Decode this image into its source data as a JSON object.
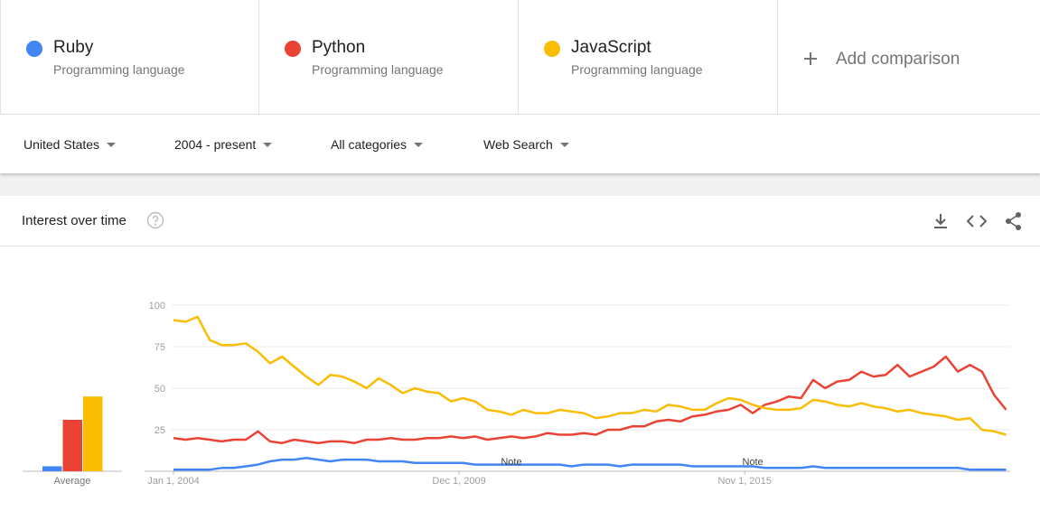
{
  "term_subtitles": [
    "Programming language",
    "Programming language",
    "Programming language"
  ],
  "add_comparison": "Add comparison",
  "filters": [
    "United States",
    "2004 - present",
    "All categories",
    "Web Search"
  ],
  "panel_title": "Interest over time",
  "chart_data": {
    "type": "line",
    "x": [
      "2004-01",
      "2004-04",
      "2004-07",
      "2004-10",
      "2005-01",
      "2005-04",
      "2005-07",
      "2005-10",
      "2006-01",
      "2006-04",
      "2006-07",
      "2006-10",
      "2007-01",
      "2007-04",
      "2007-07",
      "2007-10",
      "2008-01",
      "2008-04",
      "2008-07",
      "2008-10",
      "2009-01",
      "2009-04",
      "2009-07",
      "2009-10",
      "2010-01",
      "2010-04",
      "2010-07",
      "2010-10",
      "2011-01",
      "2011-04",
      "2011-07",
      "2011-10",
      "2012-01",
      "2012-04",
      "2012-07",
      "2012-10",
      "2013-01",
      "2013-04",
      "2013-07",
      "2013-10",
      "2014-01",
      "2014-04",
      "2014-07",
      "2014-10",
      "2015-01",
      "2015-04",
      "2015-07",
      "2015-10",
      "2016-01",
      "2016-04",
      "2016-07",
      "2016-10",
      "2017-01",
      "2017-04",
      "2017-07",
      "2017-10",
      "2018-01",
      "2018-04",
      "2018-07",
      "2018-10",
      "2019-01",
      "2019-04",
      "2019-07",
      "2019-10",
      "2020-01",
      "2020-04",
      "2020-07",
      "2020-10",
      "2021-01",
      "2021-04"
    ],
    "series": [
      {
        "name": "Ruby",
        "color": "#4285f4",
        "values": [
          1,
          1,
          1,
          1,
          2,
          2,
          3,
          4,
          6,
          7,
          7,
          8,
          7,
          6,
          7,
          7,
          7,
          6,
          6,
          6,
          5,
          5,
          5,
          5,
          5,
          4,
          4,
          4,
          4,
          4,
          4,
          4,
          4,
          3,
          4,
          4,
          4,
          3,
          4,
          4,
          4,
          4,
          4,
          3,
          3,
          3,
          3,
          3,
          3,
          2,
          2,
          2,
          2,
          3,
          2,
          2,
          2,
          2,
          2,
          2,
          2,
          2,
          2,
          2,
          2,
          2,
          1,
          1,
          1,
          1
        ]
      },
      {
        "name": "Python",
        "color": "#ea4335",
        "values": [
          20,
          19,
          20,
          19,
          18,
          19,
          19,
          24,
          18,
          17,
          19,
          18,
          17,
          18,
          18,
          17,
          19,
          19,
          20,
          19,
          19,
          20,
          20,
          21,
          20,
          21,
          19,
          20,
          21,
          20,
          21,
          23,
          22,
          22,
          23,
          22,
          25,
          25,
          27,
          27,
          30,
          31,
          30,
          33,
          34,
          36,
          37,
          40,
          35,
          40,
          42,
          45,
          44,
          55,
          50,
          54,
          55,
          60,
          57,
          58,
          64,
          57,
          60,
          63,
          69,
          60,
          64,
          60,
          46,
          37
        ]
      },
      {
        "name": "JavaScript",
        "color": "#fbbc04",
        "values": [
          91,
          90,
          93,
          79,
          76,
          76,
          77,
          72,
          65,
          69,
          63,
          57,
          52,
          58,
          57,
          54,
          50,
          56,
          52,
          47,
          50,
          48,
          47,
          42,
          44,
          42,
          37,
          36,
          34,
          37,
          35,
          35,
          37,
          36,
          35,
          32,
          33,
          35,
          35,
          37,
          36,
          40,
          39,
          37,
          37,
          41,
          44,
          43,
          40,
          38,
          37,
          37,
          38,
          43,
          42,
          40,
          39,
          41,
          39,
          38,
          36,
          37,
          35,
          34,
          33,
          31,
          32,
          25,
          24,
          22
        ]
      }
    ],
    "xlim": [
      "2004-01",
      "2021-05"
    ],
    "ylim": [
      0,
      100
    ],
    "yticks": [
      25,
      50,
      75,
      100
    ],
    "xticks": [
      {
        "value": "2004-01",
        "label": "Jan 1, 2004"
      },
      {
        "value": "2009-12",
        "label": "Dec 1, 2009"
      },
      {
        "value": "2015-11",
        "label": "Nov 1, 2015"
      }
    ],
    "grid": true,
    "annotations": [
      {
        "x": "2011-01",
        "text": "Note"
      },
      {
        "x": "2016-01",
        "text": "Note"
      }
    ],
    "average": {
      "label": "Average",
      "values": [
        3,
        31,
        45
      ]
    }
  }
}
